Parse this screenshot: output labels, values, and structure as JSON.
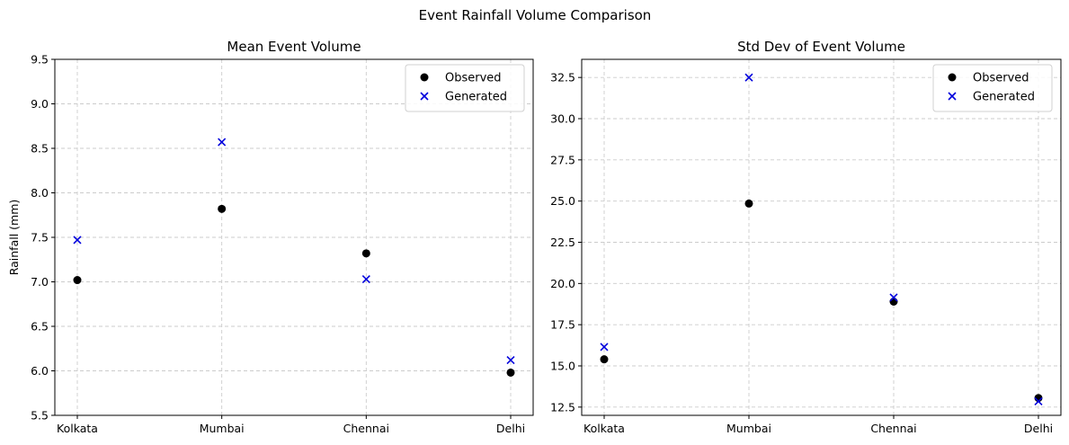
{
  "figure_title": "Event Rainfall Volume Comparison",
  "colors": {
    "observed": "#000000",
    "generated": "#0000dd",
    "grid": "#cccccc"
  },
  "chart_data": [
    {
      "type": "scatter",
      "title": "Mean Event Volume",
      "xlabel": "",
      "ylabel": "Rainfall (mm)",
      "categories": [
        "Kolkata",
        "Mumbai",
        "Chennai",
        "Delhi"
      ],
      "ylim": [
        5.5,
        9.5
      ],
      "yticks": [
        "5.5",
        "6.0",
        "6.5",
        "7.0",
        "7.5",
        "8.0",
        "8.5",
        "9.0",
        "9.5"
      ],
      "grid": true,
      "legend_position": "top-right",
      "series": [
        {
          "name": "Observed",
          "marker": "circle",
          "color": "#000000",
          "values": [
            7.02,
            7.82,
            7.32,
            5.98
          ]
        },
        {
          "name": "Generated",
          "marker": "x",
          "color": "#0000dd",
          "values": [
            7.47,
            8.57,
            7.03,
            6.12
          ]
        }
      ]
    },
    {
      "type": "scatter",
      "title": "Std Dev of Event Volume",
      "xlabel": "",
      "ylabel": "",
      "categories": [
        "Kolkata",
        "Mumbai",
        "Chennai",
        "Delhi"
      ],
      "ylim": [
        12.0,
        33.6
      ],
      "yticks": [
        "12.5",
        "15.0",
        "17.5",
        "20.0",
        "22.5",
        "25.0",
        "27.5",
        "30.0",
        "32.5"
      ],
      "grid": true,
      "legend_position": "top-right",
      "series": [
        {
          "name": "Observed",
          "marker": "circle",
          "color": "#000000",
          "values": [
            15.4,
            24.85,
            18.9,
            13.05
          ]
        },
        {
          "name": "Generated",
          "marker": "x",
          "color": "#0000dd",
          "values": [
            16.15,
            32.5,
            19.15,
            12.85
          ]
        }
      ]
    }
  ]
}
